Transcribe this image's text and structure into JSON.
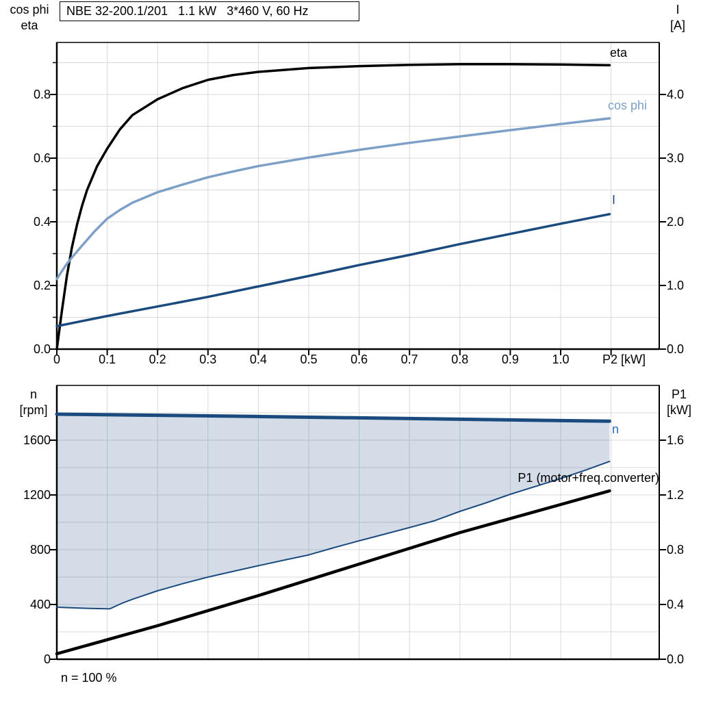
{
  "chart_data": [
    {
      "type": "line",
      "name": "motor-electrical-curves",
      "title": "NBE 32-200.1/201   1.1 kW   3*460 V, 60 Hz",
      "x_axis": {
        "label": "P2 [kW]",
        "min": 0,
        "max": 1.196,
        "grid_step": 0.1,
        "tick_labels": [
          "0",
          "0.1",
          "0.2",
          "0.3",
          "0.4",
          "0.5",
          "0.6",
          "0.7",
          "0.8",
          "0.9",
          "1.0"
        ]
      },
      "y_axis_left": {
        "label_lines": [
          "cos phi",
          "eta"
        ],
        "min": 0,
        "max": 0.963,
        "major_step": 0.2,
        "minor_step": 0.1,
        "tick_labels": [
          "0.0",
          "0.2",
          "0.4",
          "0.6",
          "0.8"
        ]
      },
      "y_axis_right": {
        "label_lines": [
          "I",
          "[A]"
        ],
        "min": 0,
        "max": 4.82,
        "major_step": 1.0,
        "tick_labels": [
          "0.0",
          "1.0",
          "2.0",
          "3.0",
          "4.0"
        ]
      },
      "grid": true,
      "grid_color": "#d8d8d8",
      "series": [
        {
          "name": "eta",
          "label": "eta",
          "axis": "left",
          "color": "#000000",
          "width": 3.5,
          "points": [
            [
              0,
              0
            ],
            [
              0.01,
              0.12
            ],
            [
              0.02,
              0.23
            ],
            [
              0.03,
              0.32
            ],
            [
              0.04,
              0.39
            ],
            [
              0.05,
              0.45
            ],
            [
              0.06,
              0.5
            ],
            [
              0.08,
              0.575
            ],
            [
              0.1,
              0.63
            ],
            [
              0.125,
              0.69
            ],
            [
              0.15,
              0.735
            ],
            [
              0.2,
              0.785
            ],
            [
              0.25,
              0.82
            ],
            [
              0.3,
              0.846
            ],
            [
              0.35,
              0.861
            ],
            [
              0.4,
              0.871
            ],
            [
              0.5,
              0.883
            ],
            [
              0.6,
              0.889
            ],
            [
              0.7,
              0.893
            ],
            [
              0.8,
              0.895
            ],
            [
              0.9,
              0.895
            ],
            [
              1.0,
              0.894
            ],
            [
              1.097,
              0.892
            ]
          ]
        },
        {
          "name": "cos-phi",
          "label": "cos phi",
          "axis": "left",
          "color": "#7da0c7",
          "width": 3.5,
          "points": [
            [
              0,
              0.22
            ],
            [
              0.01,
              0.245
            ],
            [
              0.02,
              0.268
            ],
            [
              0.03,
              0.288
            ],
            [
              0.05,
              0.325
            ],
            [
              0.075,
              0.37
            ],
            [
              0.1,
              0.41
            ],
            [
              0.125,
              0.437
            ],
            [
              0.15,
              0.46
            ],
            [
              0.2,
              0.493
            ],
            [
              0.25,
              0.517
            ],
            [
              0.3,
              0.54
            ],
            [
              0.35,
              0.558
            ],
            [
              0.4,
              0.575
            ],
            [
              0.5,
              0.602
            ],
            [
              0.6,
              0.626
            ],
            [
              0.7,
              0.648
            ],
            [
              0.8,
              0.668
            ],
            [
              0.9,
              0.688
            ],
            [
              1.0,
              0.707
            ],
            [
              1.097,
              0.725
            ]
          ]
        },
        {
          "name": "current-I",
          "label": "I",
          "axis": "right",
          "color": "#1b4a7e",
          "width": 3.5,
          "points": [
            [
              0,
              0.36
            ],
            [
              0.1,
              0.52
            ],
            [
              0.2,
              0.67
            ],
            [
              0.3,
              0.82
            ],
            [
              0.4,
              0.985
            ],
            [
              0.5,
              1.15
            ],
            [
              0.6,
              1.32
            ],
            [
              0.7,
              1.48
            ],
            [
              0.8,
              1.65
            ],
            [
              0.9,
              1.81
            ],
            [
              1.0,
              1.97
            ],
            [
              1.097,
              2.12
            ]
          ]
        }
      ]
    },
    {
      "type": "line-area",
      "name": "speed-and-input-power",
      "footer": "n = 100 %",
      "x_axis": {
        "label": "",
        "min": 0,
        "max": 1.196,
        "grid_step": 0.1,
        "tick_labels": []
      },
      "y_axis_left": {
        "label_lines": [
          "n",
          "[rpm]"
        ],
        "min": 0,
        "max": 2000,
        "major_step": 400,
        "minor_step": 200,
        "tick_labels": [
          "0",
          "400",
          "800",
          "1200",
          "1600"
        ]
      },
      "y_axis_right": {
        "label_lines": [
          "P1",
          "[kW]"
        ],
        "min": 0,
        "max": 2.0,
        "major_step": 0.4,
        "tick_labels": [
          "0.0",
          "0.4",
          "0.8",
          "1.2",
          "1.6"
        ]
      },
      "grid": true,
      "grid_color": "#d8d8d8",
      "area": {
        "between": [
          "n",
          "n-min"
        ],
        "color": "rgba(27,74,126,0.19)"
      },
      "series": [
        {
          "name": "n",
          "label": "n",
          "label_color": "#2f6cb5",
          "axis": "left",
          "color": "#1b4a7e",
          "width": 5,
          "points": [
            [
              0,
              1790
            ],
            [
              0.2,
              1782
            ],
            [
              0.4,
              1773
            ],
            [
              0.6,
              1763
            ],
            [
              0.8,
              1753
            ],
            [
              1.0,
              1743
            ],
            [
              1.097,
              1739
            ]
          ]
        },
        {
          "name": "n-min",
          "label": "",
          "axis": "left",
          "color": "#1b4a7e",
          "width": 2,
          "points": [
            [
              0,
              380
            ],
            [
              0.05,
              373
            ],
            [
              0.105,
              368
            ],
            [
              0.13,
              410
            ],
            [
              0.15,
              438
            ],
            [
              0.2,
              500
            ],
            [
              0.25,
              552
            ],
            [
              0.3,
              600
            ],
            [
              0.35,
              642
            ],
            [
              0.4,
              683
            ],
            [
              0.45,
              723
            ],
            [
              0.5,
              762
            ],
            [
              0.55,
              815
            ],
            [
              0.6,
              865
            ],
            [
              0.65,
              913
            ],
            [
              0.7,
              962
            ],
            [
              0.75,
              1012
            ],
            [
              0.8,
              1080
            ],
            [
              0.85,
              1140
            ],
            [
              0.9,
              1205
            ],
            [
              0.95,
              1262
            ],
            [
              1.0,
              1320
            ],
            [
              1.05,
              1382
            ],
            [
              1.097,
              1445
            ]
          ]
        },
        {
          "name": "P1",
          "label": "P1 (motor+freq.converter)",
          "axis": "right",
          "color": "#000000",
          "width": 4.5,
          "points": [
            [
              0,
              0.04
            ],
            [
              0.2,
              0.245
            ],
            [
              0.4,
              0.465
            ],
            [
              0.6,
              0.695
            ],
            [
              0.8,
              0.925
            ],
            [
              1.0,
              1.13
            ],
            [
              1.097,
              1.23
            ]
          ]
        }
      ]
    }
  ]
}
